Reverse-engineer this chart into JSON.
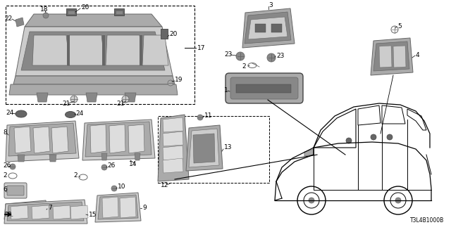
{
  "background_color": "#ffffff",
  "diagram_code": "T3L4B1000B",
  "fig_width": 6.4,
  "fig_height": 3.2,
  "gray1": "#444444",
  "gray2": "#666666",
  "gray3": "#888888",
  "gray4": "#aaaaaa",
  "gray5": "#cccccc",
  "gray6": "#dddddd",
  "gray7": "#222222"
}
